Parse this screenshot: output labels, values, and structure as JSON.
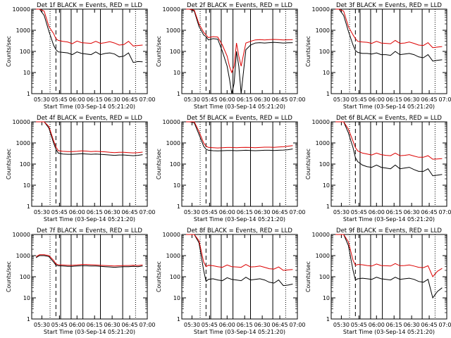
{
  "figure": {
    "xlabel": "Start Time (03-Sep-14 05:21:20)",
    "ylabel": "Counts/sec",
    "x_tick_labels": [
      "05:30",
      "05:45",
      "06:00",
      "06:15",
      "06:30",
      "06:45",
      "07:00"
    ],
    "y_tick_labels": [
      "1",
      "10",
      "100",
      "1000",
      "10000"
    ],
    "colors": {
      "events": "#000000",
      "lld": "#dd0000"
    }
  },
  "chart_data": [
    {
      "type": "line",
      "title": "Det 1f BLACK = Events, RED = LLD",
      "y_scale": "log",
      "ylim": [
        1,
        10000
      ],
      "x": [
        "05:25",
        "05:28",
        "05:32",
        "05:36",
        "05:40",
        "05:42",
        "05:44",
        "05:48",
        "05:52",
        "05:56",
        "06:00",
        "06:04",
        "06:08",
        "06:12",
        "06:16",
        "06:20",
        "06:24",
        "06:28",
        "06:32",
        "06:36",
        "06:40",
        "06:44",
        "06:48",
        "06:52",
        "06:56"
      ],
      "series": [
        {
          "values": [
            10000,
            10000,
            5000,
            900,
            200,
            120,
            95,
            90,
            85,
            70,
            95,
            80,
            75,
            70,
            95,
            70,
            80,
            85,
            75,
            55,
            60,
            85,
            30,
            33,
            32
          ]
        },
        {
          "values": [
            10000,
            10000,
            8000,
            1500,
            700,
            400,
            330,
            300,
            280,
            230,
            310,
            260,
            250,
            240,
            300,
            240,
            260,
            290,
            250,
            200,
            210,
            300,
            180,
            190,
            200
          ]
        }
      ]
    },
    {
      "type": "line",
      "title": "Det 2f BLACK = Events, RED = LLD",
      "y_scale": "log",
      "ylim": [
        1,
        10000
      ],
      "x": [
        "05:25",
        "05:28",
        "05:32",
        "05:36",
        "05:40",
        "05:42",
        "05:44",
        "05:48",
        "05:52",
        "05:56",
        "06:00",
        "06:02",
        "06:04",
        "06:06",
        "06:08",
        "06:10",
        "06:12",
        "06:16",
        "06:20",
        "06:24",
        "06:28",
        "06:32",
        "06:36",
        "06:40",
        "06:44",
        "06:48",
        "06:52",
        "06:56"
      ],
      "series": [
        {
          "values": [
            10000,
            10000,
            8000,
            1500,
            600,
            500,
            350,
            400,
            380,
            100,
            20,
            5,
            1,
            3,
            100,
            20,
            1,
            120,
            200,
            250,
            260,
            250,
            260,
            270,
            260,
            250,
            255,
            260
          ]
        },
        {
          "values": [
            10000,
            10000,
            9000,
            2000,
            800,
            600,
            450,
            500,
            480,
            200,
            60,
            20,
            10,
            20,
            250,
            60,
            20,
            250,
            300,
            350,
            360,
            350,
            360,
            370,
            360,
            350,
            355,
            360
          ]
        }
      ]
    },
    {
      "type": "line",
      "title": "Det 3f BLACK = Events, RED = LLD",
      "y_scale": "log",
      "ylim": [
        1,
        10000
      ],
      "x": [
        "05:25",
        "05:28",
        "05:32",
        "05:36",
        "05:40",
        "05:42",
        "05:44",
        "05:48",
        "05:52",
        "05:56",
        "06:00",
        "06:04",
        "06:08",
        "06:12",
        "06:16",
        "06:20",
        "06:24",
        "06:28",
        "06:32",
        "06:36",
        "06:40",
        "06:44",
        "06:48",
        "06:52",
        "06:56"
      ],
      "series": [
        {
          "values": [
            10000,
            10000,
            5000,
            900,
            200,
            110,
            90,
            80,
            80,
            75,
            85,
            70,
            70,
            65,
            100,
            70,
            75,
            80,
            70,
            55,
            50,
            70,
            35,
            38,
            40
          ]
        },
        {
          "values": [
            10000,
            10000,
            8000,
            1500,
            600,
            400,
            300,
            280,
            270,
            240,
            300,
            250,
            240,
            230,
            330,
            240,
            250,
            280,
            240,
            200,
            190,
            260,
            150,
            160,
            170
          ]
        }
      ]
    },
    {
      "type": "line",
      "title": "Det 4f BLACK = Events, RED = LLD",
      "y_scale": "log",
      "ylim": [
        1,
        10000
      ],
      "x": [
        "05:25",
        "05:28",
        "05:32",
        "05:36",
        "05:40",
        "05:42",
        "05:44",
        "05:48",
        "05:52",
        "05:56",
        "06:00",
        "06:04",
        "06:08",
        "06:12",
        "06:16",
        "06:20",
        "06:24",
        "06:28",
        "06:32",
        "06:36",
        "06:40",
        "06:44",
        "06:48",
        "06:52",
        "06:56"
      ],
      "series": [
        {
          "values": [
            10000,
            10000,
            10000,
            5000,
            1000,
            500,
            330,
            300,
            290,
            290,
            300,
            310,
            300,
            290,
            300,
            290,
            280,
            270,
            260,
            270,
            270,
            260,
            250,
            260,
            280
          ]
        },
        {
          "values": [
            10000,
            10000,
            10000,
            6000,
            1300,
            650,
            430,
            400,
            390,
            390,
            400,
            420,
            410,
            390,
            400,
            390,
            380,
            360,
            350,
            360,
            360,
            350,
            340,
            350,
            370
          ]
        }
      ]
    },
    {
      "type": "line",
      "title": "Det 5f BLACK = Events, RED = LLD",
      "y_scale": "log",
      "ylim": [
        1,
        10000
      ],
      "x": [
        "05:25",
        "05:28",
        "05:32",
        "05:36",
        "05:40",
        "05:42",
        "05:44",
        "05:48",
        "05:52",
        "05:56",
        "06:00",
        "06:04",
        "06:08",
        "06:12",
        "06:16",
        "06:20",
        "06:24",
        "06:28",
        "06:32",
        "06:36",
        "06:40",
        "06:44",
        "06:48",
        "06:52",
        "06:56"
      ],
      "series": [
        {
          "values": [
            10000,
            10000,
            9000,
            2500,
            700,
            500,
            450,
            430,
            420,
            430,
            440,
            440,
            430,
            440,
            450,
            440,
            430,
            440,
            450,
            450,
            440,
            450,
            460,
            480,
            520
          ]
        },
        {
          "values": [
            10000,
            10000,
            10000,
            3500,
            1000,
            700,
            620,
            600,
            580,
            600,
            610,
            610,
            600,
            610,
            620,
            610,
            600,
            610,
            630,
            630,
            620,
            640,
            660,
            700,
            750
          ]
        }
      ]
    },
    {
      "type": "line",
      "title": "Det 6f BLACK = Events, RED = LLD",
      "y_scale": "log",
      "ylim": [
        1,
        10000
      ],
      "x": [
        "05:25",
        "05:28",
        "05:32",
        "05:36",
        "05:40",
        "05:42",
        "05:44",
        "05:48",
        "05:52",
        "05:56",
        "06:00",
        "06:04",
        "06:08",
        "06:12",
        "06:16",
        "06:20",
        "06:24",
        "06:28",
        "06:32",
        "06:36",
        "06:40",
        "06:44",
        "06:48",
        "06:52",
        "06:56"
      ],
      "series": [
        {
          "values": [
            10000,
            10000,
            10000,
            3000,
            600,
            200,
            130,
            90,
            75,
            70,
            90,
            70,
            65,
            60,
            90,
            60,
            65,
            70,
            55,
            45,
            45,
            60,
            28,
            30,
            32
          ]
        },
        {
          "values": [
            10000,
            10000,
            10000,
            4500,
            1200,
            600,
            420,
            330,
            300,
            270,
            330,
            280,
            260,
            250,
            330,
            250,
            260,
            280,
            240,
            210,
            210,
            250,
            170,
            175,
            180
          ]
        }
      ]
    },
    {
      "type": "line",
      "title": "Det 7f BLACK = Events, RED = LLD",
      "y_scale": "log",
      "ylim": [
        1,
        10000
      ],
      "x": [
        "05:25",
        "05:28",
        "05:32",
        "05:36",
        "05:40",
        "05:42",
        "05:44",
        "05:48",
        "05:52",
        "05:56",
        "06:00",
        "06:04",
        "06:08",
        "06:12",
        "06:16",
        "06:20",
        "06:24",
        "06:28",
        "06:32",
        "06:36",
        "06:40",
        "06:44",
        "06:48",
        "06:52",
        "06:56"
      ],
      "series": [
        {
          "values": [
            800,
            1000,
            1000,
            900,
            500,
            350,
            330,
            320,
            310,
            310,
            320,
            330,
            330,
            320,
            320,
            310,
            300,
            290,
            280,
            290,
            300,
            300,
            310,
            300,
            320
          ]
        },
        {
          "values": [
            900,
            1100,
            1100,
            1000,
            600,
            400,
            370,
            360,
            350,
            350,
            360,
            380,
            380,
            370,
            360,
            350,
            340,
            330,
            320,
            330,
            340,
            340,
            350,
            340,
            360
          ]
        }
      ]
    },
    {
      "type": "line",
      "title": "Det 8f BLACK = Events, RED = LLD",
      "y_scale": "log",
      "ylim": [
        1,
        10000
      ],
      "x": [
        "05:25",
        "05:28",
        "05:32",
        "05:36",
        "05:40",
        "05:42",
        "05:44",
        "05:48",
        "05:52",
        "05:56",
        "06:00",
        "06:04",
        "06:08",
        "06:12",
        "06:16",
        "06:20",
        "06:24",
        "06:28",
        "06:32",
        "06:36",
        "06:40",
        "06:44",
        "06:48",
        "06:52",
        "06:56"
      ],
      "series": [
        {
          "values": [
            10000,
            10000,
            10000,
            4000,
            200,
            60,
            75,
            80,
            70,
            65,
            90,
            75,
            70,
            65,
            95,
            70,
            75,
            80,
            70,
            55,
            50,
            70,
            38,
            40,
            45
          ]
        },
        {
          "values": [
            10000,
            10000,
            10000,
            5000,
            500,
            300,
            350,
            330,
            300,
            280,
            360,
            300,
            290,
            280,
            380,
            290,
            300,
            320,
            280,
            240,
            230,
            290,
            200,
            210,
            220
          ]
        }
      ]
    },
    {
      "type": "line",
      "title": "Det 9f BLACK = Events, RED = LLD",
      "y_scale": "log",
      "ylim": [
        1,
        10000
      ],
      "x": [
        "05:25",
        "05:28",
        "05:32",
        "05:36",
        "05:40",
        "05:42",
        "05:44",
        "05:48",
        "05:52",
        "05:56",
        "06:00",
        "06:04",
        "06:08",
        "06:12",
        "06:16",
        "06:20",
        "06:24",
        "06:28",
        "06:32",
        "06:36",
        "06:40",
        "06:44",
        "06:48",
        "06:52",
        "06:56"
      ],
      "series": [
        {
          "values": [
            10000,
            10000,
            10000,
            3000,
            200,
            70,
            80,
            85,
            80,
            75,
            95,
            80,
            75,
            70,
            95,
            75,
            80,
            85,
            75,
            60,
            55,
            75,
            10,
            20,
            30
          ]
        },
        {
          "values": [
            10000,
            10000,
            10000,
            4500,
            600,
            350,
            380,
            370,
            340,
            320,
            400,
            340,
            330,
            320,
            420,
            330,
            340,
            360,
            320,
            280,
            270,
            330,
            100,
            180,
            250
          ]
        }
      ]
    }
  ]
}
